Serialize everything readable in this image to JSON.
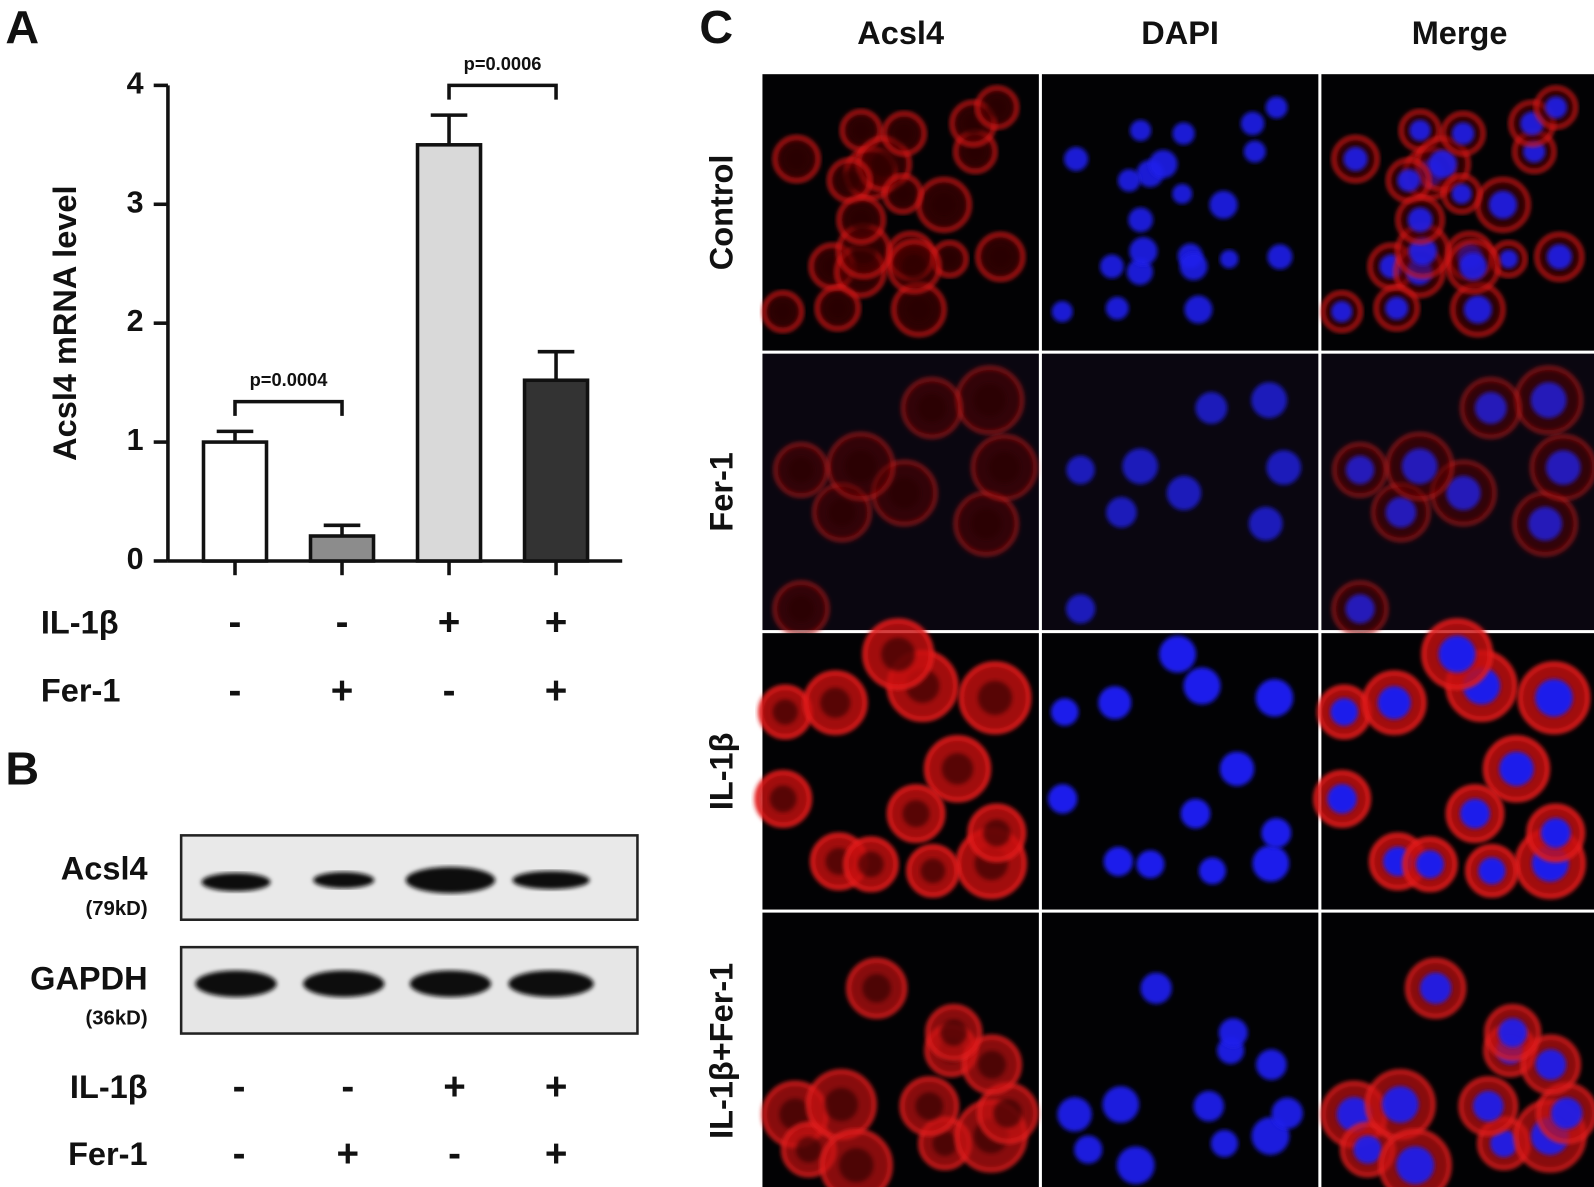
{
  "chart_data": {
    "type": "bar",
    "panel": "A",
    "ylabel": "Acsl4 mRNA level",
    "values": [
      1.0,
      0.21,
      3.5,
      1.52
    ],
    "errors": [
      0.09,
      0.09,
      0.25,
      0.24
    ],
    "colors": [
      "#ffffff",
      "#8c8c8c",
      "#d9d9d9",
      "#333333"
    ],
    "ylim": [
      0,
      4
    ],
    "yticks": [
      0,
      1,
      2,
      3,
      4
    ],
    "annotations": [
      "p=0.0004",
      "p=0.0006"
    ],
    "conditions": [
      {
        "name": "IL-1β",
        "marks": [
          "-",
          "-",
          "+",
          "+"
        ]
      },
      {
        "name": "Fer-1",
        "marks": [
          "-",
          "+",
          "-",
          "+"
        ]
      }
    ]
  },
  "blot": {
    "panel": "B",
    "rows": [
      {
        "name": "Acsl4",
        "size": "(79kD)"
      },
      {
        "name": "GAPDH",
        "size": "(36kD)"
      }
    ],
    "conditions": [
      {
        "name": "IL-1β",
        "marks": [
          "-",
          "-",
          "+",
          "+"
        ]
      },
      {
        "name": "Fer-1",
        "marks": [
          "-",
          "+",
          "-",
          "+"
        ]
      }
    ]
  },
  "images": {
    "panel": "C",
    "columns": [
      "Acsl4",
      "DAPI",
      "Merge"
    ],
    "rows": [
      "Control",
      "Fer-1",
      "IL-1β",
      "IL-1β+Fer-1"
    ]
  }
}
